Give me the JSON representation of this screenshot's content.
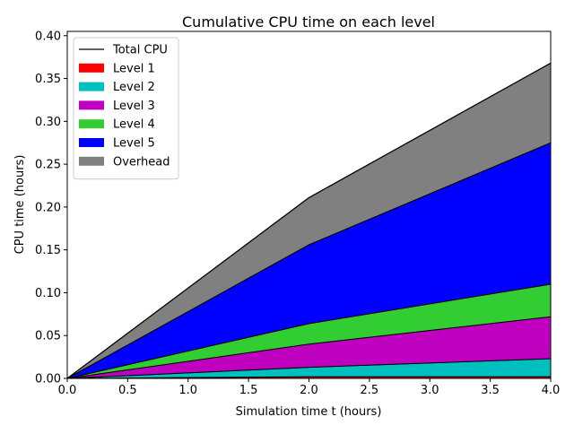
{
  "chart_data": {
    "type": "area",
    "title": "Cumulative CPU time on each level",
    "xlabel": "Simulation time t (hours)",
    "ylabel": "CPU time (hours)",
    "xlim": [
      0.0,
      4.0
    ],
    "ylim": [
      0.0,
      0.405
    ],
    "x": [
      0.0,
      2.0,
      4.0
    ],
    "xticks": [
      "0.0",
      "0.5",
      "1.0",
      "1.5",
      "2.0",
      "2.5",
      "3.0",
      "3.5",
      "4.0"
    ],
    "yticks": [
      "0.00",
      "0.05",
      "0.10",
      "0.15",
      "0.20",
      "0.25",
      "0.30",
      "0.35",
      "0.40"
    ],
    "stacked": true,
    "grid": false,
    "legend_position": "upper-left",
    "series": [
      {
        "name": "Level 1",
        "color": "#ff0000",
        "values": [
          0.0,
          0.002,
          0.002
        ]
      },
      {
        "name": "Level 2",
        "color": "#00bfbf",
        "values": [
          0.0,
          0.011,
          0.021
        ]
      },
      {
        "name": "Level 3",
        "color": "#bf00bf",
        "values": [
          0.0,
          0.027,
          0.049
        ]
      },
      {
        "name": "Level 4",
        "color": "#32cd32",
        "values": [
          0.0,
          0.024,
          0.038
        ]
      },
      {
        "name": "Level 5",
        "color": "#0000ff",
        "values": [
          0.0,
          0.092,
          0.165
        ]
      },
      {
        "name": "Overhead",
        "color": "#808080",
        "values": [
          0.0,
          0.055,
          0.093
        ]
      }
    ],
    "total_line": {
      "name": "Total CPU",
      "color": "#000000",
      "values": [
        0.0,
        0.211,
        0.368
      ]
    }
  }
}
